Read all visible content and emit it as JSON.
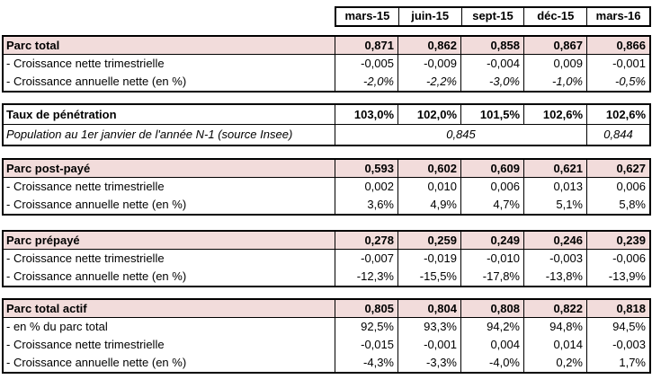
{
  "columns": [
    "mars-15",
    "juin-15",
    "sept-15",
    "déc-15",
    "mars-16"
  ],
  "colors": {
    "section_header_bg": "#F2DCDB",
    "border": "#000000"
  },
  "sections": {
    "parc_total": {
      "title": "Parc total",
      "values": [
        "0,871",
        "0,862",
        "0,858",
        "0,867",
        "0,866"
      ],
      "rows": [
        {
          "label": "- Croissance nette trimestrielle",
          "values": [
            "-0,005",
            "-0,009",
            "-0,004",
            "0,009",
            "-0,001"
          ]
        },
        {
          "label": "- Croissance annuelle nette (en %)",
          "values": [
            "-2,0%",
            "-2,2%",
            "-3,0%",
            "-1,0%",
            "-0,5%"
          ]
        }
      ]
    },
    "taux": {
      "title": "Taux de pénétration",
      "values": [
        "103,0%",
        "102,0%",
        "101,5%",
        "102,6%",
        "102,6%"
      ],
      "population_label": "Population au 1er janvier de l'année N-1 (source Insee)",
      "population_merged": "0,845",
      "population_last": "0,844"
    },
    "parc_post_paye": {
      "title": "Parc post-payé",
      "values": [
        "0,593",
        "0,602",
        "0,609",
        "0,621",
        "0,627"
      ],
      "rows": [
        {
          "label": "- Croissance nette trimestrielle",
          "values": [
            "0,002",
            "0,010",
            "0,006",
            "0,013",
            "0,006"
          ]
        },
        {
          "label": "- Croissance annuelle nette (en %)",
          "values": [
            "3,6%",
            "4,9%",
            "4,7%",
            "5,1%",
            "5,8%"
          ]
        }
      ]
    },
    "parc_prepaye": {
      "title": "Parc prépayé",
      "values": [
        "0,278",
        "0,259",
        "0,249",
        "0,246",
        "0,239"
      ],
      "rows": [
        {
          "label": "- Croissance nette trimestrielle",
          "values": [
            "-0,007",
            "-0,019",
            "-0,010",
            "-0,003",
            "-0,006"
          ]
        },
        {
          "label": "- Croissance annuelle nette (en %)",
          "values": [
            "-12,3%",
            "-15,5%",
            "-17,8%",
            "-13,8%",
            "-13,9%"
          ]
        }
      ]
    },
    "parc_total_actif": {
      "title": "Parc total actif",
      "values": [
        "0,805",
        "0,804",
        "0,808",
        "0,822",
        "0,818"
      ],
      "rows": [
        {
          "label": "- en % du parc total",
          "values": [
            "92,5%",
            "93,3%",
            "94,2%",
            "94,8%",
            "94,5%"
          ]
        },
        {
          "label": "- Croissance nette trimestrielle",
          "values": [
            "-0,015",
            "-0,001",
            "0,004",
            "0,014",
            "-0,003"
          ]
        },
        {
          "label": "- Croissance annuelle nette (en %)",
          "values": [
            "-4,3%",
            "-3,3%",
            "-4,0%",
            "0,2%",
            "1,7%"
          ]
        }
      ]
    }
  }
}
